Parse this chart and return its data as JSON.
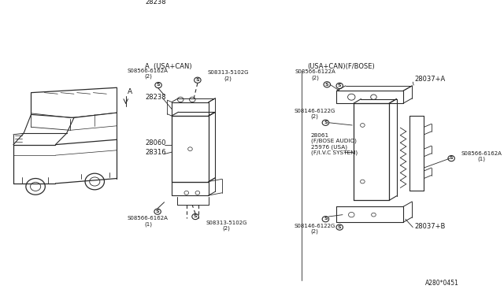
{
  "bg_color": "#ffffff",
  "fig_ref": "A280*0451",
  "left_section_label": "A  (USA+CAN)",
  "right_section_label": "(USA+CAN)(F/BOSE)",
  "lc": "#2a2a2a",
  "tc": "#1a1a1a",
  "center": {
    "28238": "28238",
    "28060": "28060",
    "28316": "28316",
    "screw_tl": "S08566-6162A\n(2)",
    "screw_tr": "S08313-5102G\n(2)",
    "screw_bl": "S08566-6162A\n(1)",
    "screw_br": "S08313-5102G\n(2)"
  },
  "right": {
    "28037A": "28037+A",
    "28037B": "28037+B",
    "28061": "28061\n(F/BOSE AUDIO)\n25976 (USA)\n(F/I.V.C SYSTEM)",
    "screw1": "S08566-6122A\n(2)",
    "screw2": "S08146-6122G\n(2)",
    "screw3": "S08566-6162A\n(1)",
    "screw4": "S08146-6122G\n(2)"
  }
}
